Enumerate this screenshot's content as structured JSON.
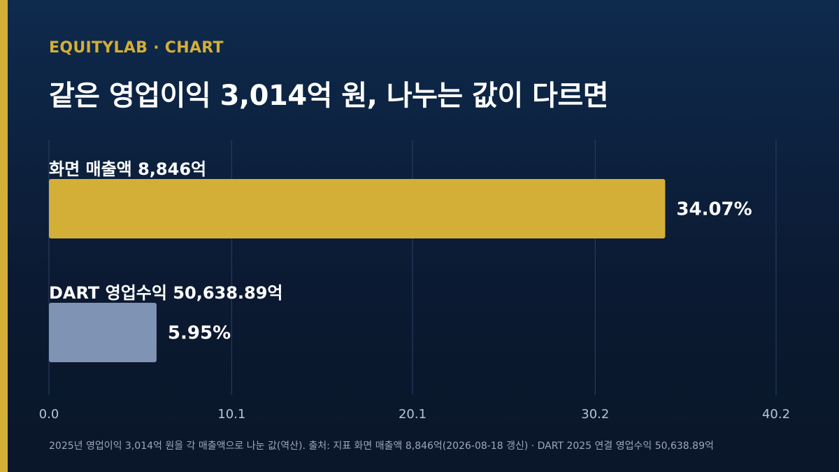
{
  "header": {
    "kicker": "EQUITYLAB · CHART",
    "title": "같은 영업이익 3,014억 원, 나누는 값이 다르면"
  },
  "footnote": "2025년 영업이익 3,014억 원을 각 매출액으로 나눈 값(역산). 출처: 지표 화면 매출액 8,846억(2026-08-18 갱신) · DART 2025 연결 영업수익 50,638.89억",
  "colors": {
    "accent": "#d4af37",
    "bar_primary": "#d4af37",
    "bar_secondary": "#7f93b4"
  },
  "chart_data": {
    "type": "bar",
    "orientation": "horizontal",
    "categories": [
      "화면 매출액 8,846억",
      "DART 영업수익 50,638.89억"
    ],
    "values": [
      34.07,
      5.95
    ],
    "value_labels": [
      "34.07%",
      "5.95%"
    ],
    "xlim": [
      0,
      40.2
    ],
    "xticks": [
      0.0,
      10.1,
      20.1,
      30.2,
      40.2
    ],
    "xtick_labels": [
      "0.0",
      "10.1",
      "20.1",
      "30.2",
      "40.2"
    ],
    "grid": true
  }
}
